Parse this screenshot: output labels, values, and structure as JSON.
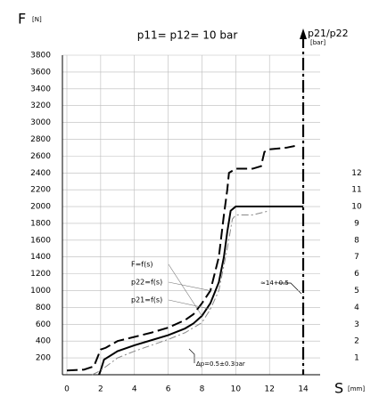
{
  "chart_data": {
    "type": "line",
    "title": "p11= p12= 10 bar",
    "y_label": "F",
    "y_unit": "[N]",
    "x_label": "S",
    "x_unit": "[mm]",
    "y2_label": "p21/p22",
    "y2_unit": "[bar]",
    "annotations": [
      "∆p=0.5±0.3bar",
      "≈14+0.5"
    ],
    "xlim": [
      0,
      15
    ],
    "xticks": [
      0,
      2,
      4,
      6,
      8,
      10,
      12,
      14
    ],
    "ylim": [
      0,
      3800
    ],
    "yticks": [
      200,
      400,
      600,
      800,
      1000,
      1200,
      1400,
      1600,
      1800,
      2000,
      2200,
      2400,
      2600,
      2800,
      3000,
      3200,
      3400,
      3600,
      3800
    ],
    "y2lim": [
      0,
      19
    ],
    "y2ticks": [
      1,
      2,
      3,
      4,
      5,
      6,
      7,
      8,
      9,
      10,
      11,
      12
    ],
    "grid": true,
    "series": [
      {
        "name": "F=f(s)",
        "color": "#000000",
        "line_style": "solid",
        "axis": "y",
        "x": [
          1.9,
          2,
          2.2,
          3,
          4,
          5,
          6,
          7,
          7.5,
          8,
          8.5,
          9,
          9.3,
          9.5,
          9.7,
          10,
          14
        ],
        "values": [
          0,
          50,
          180,
          280,
          350,
          410,
          470,
          550,
          610,
          700,
          850,
          1100,
          1400,
          1700,
          1950,
          2000,
          2000
        ]
      },
      {
        "name": "p22=f(s)",
        "color": "#000000",
        "line_style": "dashed",
        "axis": "y2",
        "x": [
          0,
          1,
          1.6,
          1.8,
          2,
          2.3,
          3,
          4,
          5,
          6,
          7,
          7.5,
          8,
          8.5,
          9,
          9.3,
          9.5,
          9.6,
          10,
          11,
          11.5,
          11.7,
          12,
          13,
          13.5
        ],
        "values": [
          0.25,
          0.3,
          0.5,
          1,
          1.5,
          1.6,
          2,
          2.25,
          2.5,
          2.8,
          3.25,
          3.6,
          4.25,
          5,
          7,
          9.5,
          11,
          12,
          12.25,
          12.25,
          12.4,
          13.25,
          13.4,
          13.5,
          13.6
        ]
      },
      {
        "name": "p21=f(s)",
        "color": "#888888",
        "line_style": "dashdot",
        "axis": "y2",
        "x": [
          1.5,
          2,
          3,
          4,
          5,
          6,
          7,
          8,
          8.5,
          9,
          9.5,
          9.8,
          10,
          11,
          12
        ],
        "values": [
          0,
          0.25,
          1,
          1.4,
          1.75,
          2.1,
          2.5,
          3.1,
          3.9,
          5,
          7.5,
          9.25,
          9.5,
          9.5,
          9.75
        ]
      }
    ]
  }
}
